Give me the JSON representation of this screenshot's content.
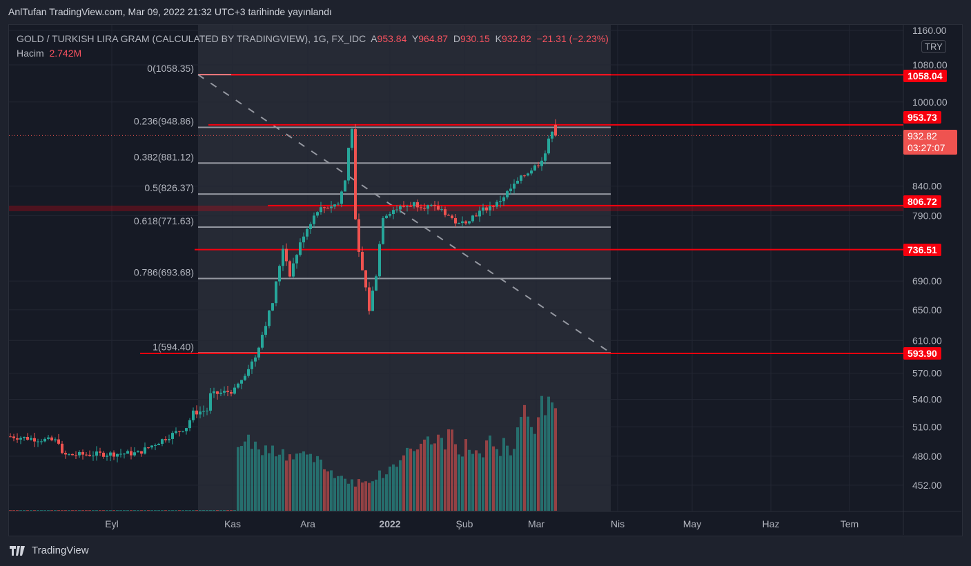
{
  "publish_line": "AnlTufan TradingView.com, Mar 09, 2022 21:32 UTC+3 tarihinde yayınlandı",
  "legend": {
    "symbol": "GOLD / TURKISH LIRA GRAM (CALCULATED BY TRADINGVIEW), 1G, FX_IDC",
    "open_label": "A",
    "open": "953.84",
    "high_label": "Y",
    "high": "964.87",
    "low_label": "D",
    "low": "930.15",
    "close_label": "K",
    "close": "932.82",
    "change": "−21.31 (−2.23%)",
    "volume_label": "Hacim",
    "volume": "2.742M"
  },
  "currency": "TRY",
  "brand": "TradingView",
  "colors": {
    "up": "#26a69a",
    "down": "#ef5350",
    "level": "#f7000e",
    "fib": "#9598a1"
  },
  "price_labels": [
    {
      "text": "1058.04",
      "price": 1058.04
    },
    {
      "text": "953.73",
      "price": 953.73
    },
    {
      "text": "806.72",
      "price": 806.72
    },
    {
      "text": "736.51",
      "price": 736.51
    },
    {
      "text": "593.90",
      "price": 593.9
    }
  ],
  "last_price": {
    "text": "932.82",
    "countdown": "03:27:07",
    "price": 932.82
  },
  "chart_data": {
    "type": "candlestick",
    "y_ticks": [
      "1160.00",
      "1080.00",
      "1000.00",
      "840.00",
      "790.00",
      "690.00",
      "650.00",
      "610.00",
      "570.00",
      "540.00",
      "510.00",
      "480.00",
      "452.00"
    ],
    "x_ticks": [
      "Eyl",
      "Kas",
      "Ara",
      "2022",
      "Şub",
      "Mar",
      "Nis",
      "May",
      "Haz",
      "Tem"
    ],
    "y_scale": "log",
    "fib_levels": [
      {
        "label": "0(1058.35)",
        "price": 1058.35
      },
      {
        "label": "0.236(948.86)",
        "price": 948.86
      },
      {
        "label": "0.382(881.12)",
        "price": 881.12
      },
      {
        "label": "0.5(826.37)",
        "price": 826.37
      },
      {
        "label": "0.618(771.63)",
        "price": 771.63
      },
      {
        "label": "0.786(693.68)",
        "price": 693.68
      },
      {
        "label": "1(594.40)",
        "price": 594.4
      }
    ],
    "close_keypoints_by_bar": [
      [
        0,
        500
      ],
      [
        14,
        495
      ],
      [
        15,
        481
      ],
      [
        37,
        483
      ],
      [
        51,
        510
      ],
      [
        53,
        525
      ],
      [
        57,
        528
      ],
      [
        58,
        545
      ],
      [
        65,
        550
      ],
      [
        71,
        590
      ],
      [
        76,
        660
      ],
      [
        79,
        740
      ],
      [
        81,
        700
      ],
      [
        85,
        760
      ],
      [
        89,
        800
      ],
      [
        95,
        810
      ],
      [
        97,
        850
      ],
      [
        98,
        910
      ],
      [
        99,
        950
      ],
      [
        100,
        780
      ],
      [
        101,
        730
      ],
      [
        103,
        680
      ],
      [
        104,
        650
      ],
      [
        106,
        700
      ],
      [
        108,
        790
      ],
      [
        111,
        800
      ],
      [
        117,
        810
      ],
      [
        125,
        800
      ],
      [
        130,
        775
      ],
      [
        137,
        800
      ],
      [
        141,
        810
      ],
      [
        149,
        860
      ],
      [
        153,
        880
      ],
      [
        155,
        900
      ],
      [
        157,
        945
      ],
      [
        158,
        933
      ]
    ],
    "volume_keypoints_by_bar": [
      [
        66,
        0.55
      ],
      [
        70,
        0.6
      ],
      [
        75,
        0.55
      ],
      [
        80,
        0.45
      ],
      [
        85,
        0.5
      ],
      [
        90,
        0.4
      ],
      [
        95,
        0.3
      ],
      [
        100,
        0.25
      ],
      [
        105,
        0.28
      ],
      [
        110,
        0.35
      ],
      [
        116,
        0.55
      ],
      [
        122,
        0.6
      ],
      [
        128,
        0.62
      ],
      [
        134,
        0.5
      ],
      [
        140,
        0.6
      ],
      [
        146,
        0.5
      ],
      [
        149,
        1.0
      ],
      [
        152,
        0.75
      ],
      [
        156,
        1.0
      ],
      [
        158,
        0.8
      ]
    ]
  }
}
